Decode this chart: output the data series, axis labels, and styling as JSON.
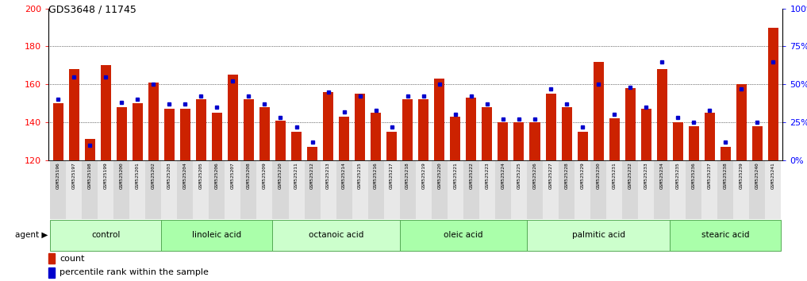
{
  "title": "GDS3648 / 11745",
  "samples": [
    "GSM525196",
    "GSM525197",
    "GSM525198",
    "GSM525199",
    "GSM525200",
    "GSM525201",
    "GSM525202",
    "GSM525203",
    "GSM525204",
    "GSM525205",
    "GSM525206",
    "GSM525207",
    "GSM525208",
    "GSM525209",
    "GSM525210",
    "GSM525211",
    "GSM525212",
    "GSM525213",
    "GSM525214",
    "GSM525215",
    "GSM525216",
    "GSM525217",
    "GSM525218",
    "GSM525219",
    "GSM525220",
    "GSM525221",
    "GSM525222",
    "GSM525223",
    "GSM525224",
    "GSM525225",
    "GSM525226",
    "GSM525227",
    "GSM525228",
    "GSM525229",
    "GSM525230",
    "GSM525231",
    "GSM525232",
    "GSM525233",
    "GSM525234",
    "GSM525235",
    "GSM525236",
    "GSM525237",
    "GSM525238",
    "GSM525239",
    "GSM525240",
    "GSM525241"
  ],
  "count_values": [
    150,
    168,
    131,
    170,
    148,
    150,
    161,
    147,
    147,
    152,
    145,
    165,
    152,
    148,
    141,
    135,
    127,
    156,
    143,
    155,
    145,
    135,
    152,
    152,
    163,
    143,
    153,
    148,
    140,
    140,
    140,
    155,
    148,
    135,
    172,
    142,
    158,
    147,
    168,
    140,
    138,
    145,
    127,
    160,
    138,
    190
  ],
  "percentile_values": [
    40,
    55,
    10,
    55,
    38,
    40,
    50,
    37,
    37,
    42,
    35,
    52,
    42,
    37,
    28,
    22,
    12,
    45,
    32,
    42,
    33,
    22,
    42,
    42,
    50,
    30,
    42,
    37,
    27,
    27,
    27,
    47,
    37,
    22,
    50,
    30,
    48,
    35,
    65,
    28,
    25,
    33,
    12,
    47,
    25,
    65
  ],
  "groups": [
    {
      "label": "control",
      "start": 0,
      "end": 7
    },
    {
      "label": "linoleic acid",
      "start": 7,
      "end": 14
    },
    {
      "label": "octanoic acid",
      "start": 14,
      "end": 22
    },
    {
      "label": "oleic acid",
      "start": 22,
      "end": 30
    },
    {
      "label": "palmitic acid",
      "start": 30,
      "end": 39
    },
    {
      "label": "stearic acid",
      "start": 39,
      "end": 46
    }
  ],
  "group_colors": [
    "#ccffcc",
    "#aaffaa",
    "#ccffcc",
    "#aaffaa",
    "#ccffcc",
    "#aaffaa"
  ],
  "ylim_left": [
    120,
    200
  ],
  "yticks_left": [
    120,
    140,
    160,
    180,
    200
  ],
  "ylim_right": [
    0,
    100
  ],
  "yticks_right": [
    0,
    25,
    50,
    75,
    100
  ],
  "bar_color": "#cc2200",
  "dot_color": "#0000cc",
  "bar_width": 0.65,
  "background_color": "#ffffff"
}
